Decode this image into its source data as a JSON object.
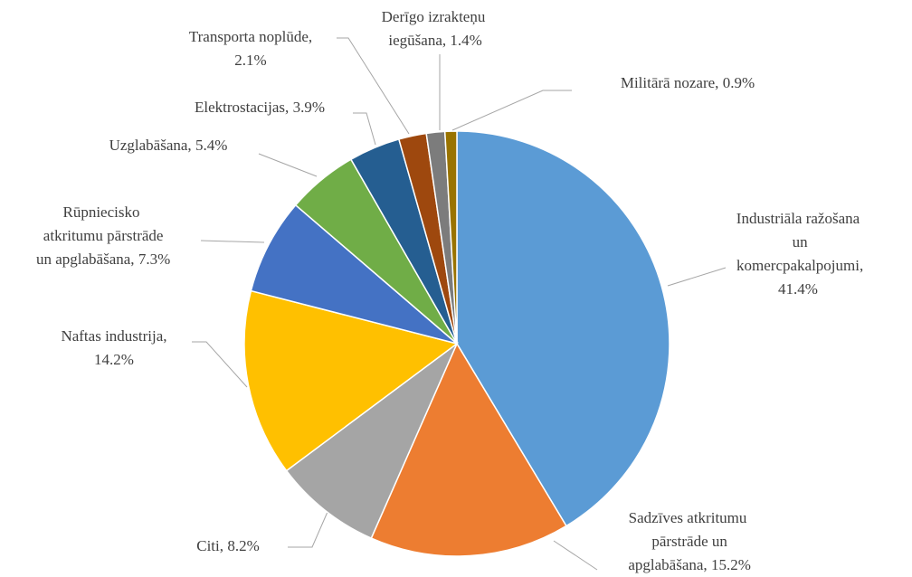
{
  "chart_data": {
    "type": "pie",
    "categories": [
      "Industriāla ražošana un komercpakalpojumi,",
      "Sadzīves atkritumu pārstrāde un apglabāšana,",
      "Citi,",
      "Naftas industrija,",
      "Rūpniecisko atkritumu pārstrāde un apglabāšana,",
      "Uzglabāšana,",
      "Elektrostacijas,",
      "Transporta noplūde,",
      "Derīgo izrakteņu iegūšana,",
      "Militārā nozare,"
    ],
    "values": [
      41.4,
      15.2,
      8.2,
      14.2,
      7.3,
      5.4,
      3.9,
      2.1,
      1.4,
      0.9
    ],
    "value_labels": [
      "41.4%",
      "15.2%",
      "8.2%",
      "14.2%",
      "7.3%",
      "5.4%",
      "3.9%",
      "2.1%",
      "1.4%",
      "0.9%"
    ],
    "colors": [
      "#5b9bd5",
      "#ed7d31",
      "#a5a5a5",
      "#ffc000",
      "#4472c4",
      "#70ad47",
      "#255e91",
      "#9e480e",
      "#7c7c7c",
      "#997300"
    ]
  }
}
